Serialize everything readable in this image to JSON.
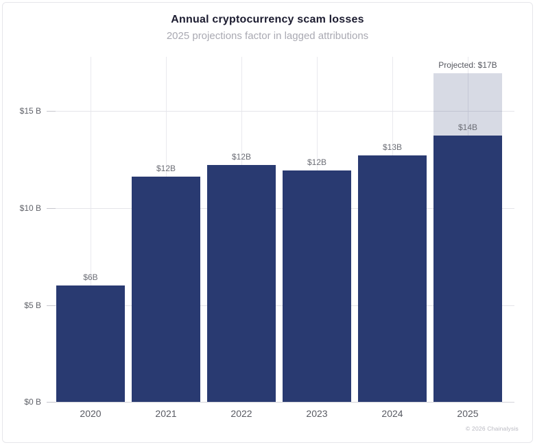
{
  "header": {
    "title": "Annual cryptocurrency scam losses",
    "subtitle": "2025 projections factor in lagged attributions"
  },
  "footer": {
    "credit": "© 2026 Chainalysis"
  },
  "chart_data": {
    "type": "bar",
    "title": "Annual cryptocurrency scam losses",
    "subtitle": "2025 projections factor in lagged attributions",
    "categories": [
      "2020",
      "2021",
      "2022",
      "2023",
      "2024",
      "2025"
    ],
    "series": [
      {
        "name": "actual-losses",
        "color": "#293a71",
        "values": [
          6.0,
          11.6,
          12.2,
          11.9,
          12.7,
          13.7
        ]
      },
      {
        "name": "projected-additional",
        "color": "rgba(40,59,114,0.19)",
        "values": [
          0,
          0,
          0,
          0,
          0,
          3.2
        ]
      }
    ],
    "bar_labels": [
      "$6B",
      "$12B",
      "$12B",
      "$12B",
      "$13B",
      "$14B"
    ],
    "projection_label": "Projected: $17B",
    "xlabel": "",
    "ylabel": "",
    "ylim": [
      0,
      17.8
    ],
    "yticks": [
      {
        "value": 0,
        "label": "$0 B"
      },
      {
        "value": 5,
        "label": "$5 B"
      },
      {
        "value": 10,
        "label": "$10 B"
      },
      {
        "value": 15,
        "label": "$15 B"
      }
    ],
    "grid": true,
    "legend": "none"
  }
}
